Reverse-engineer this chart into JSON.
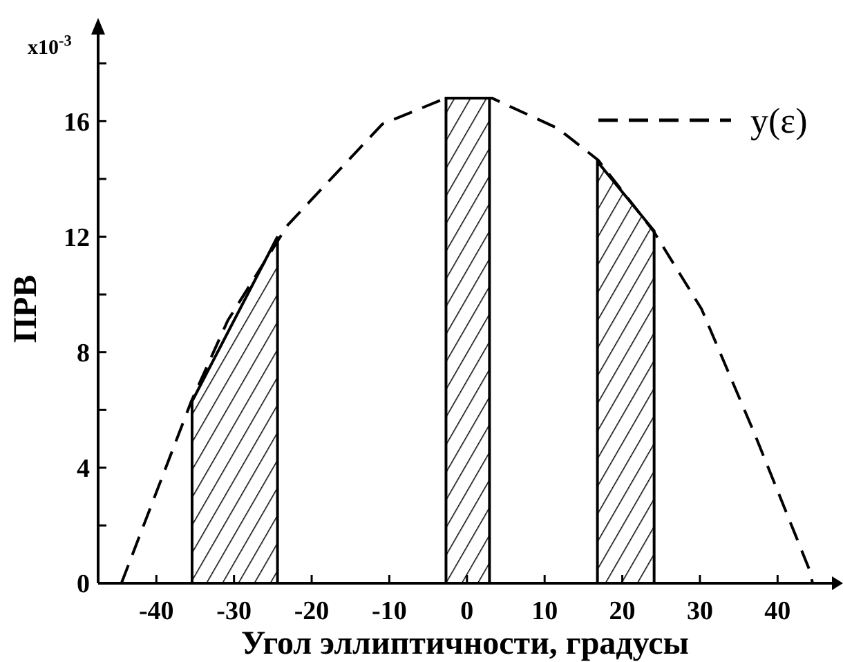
{
  "chart_data": {
    "type": "line",
    "xlabel": "Угол эллиптичности, градусы",
    "ylabel": "ПРВ",
    "annotations": [
      "x10$^{-3}$"
    ],
    "xlim": [
      -47.5,
      47
    ],
    "ylim": [
      0,
      19
    ],
    "xticks": [
      -40,
      -30,
      -20,
      -10,
      0,
      10,
      20,
      30,
      40
    ],
    "yticks": [
      0,
      {
        "value": 2,
        "label": null
      },
      4,
      {
        "value": 6,
        "label": null
      },
      8,
      {
        "value": 10,
        "label": null
      },
      12,
      {
        "value": 14,
        "label": null
      },
      16,
      {
        "value": 18,
        "label": null
      }
    ],
    "grid": false,
    "legend": "top right",
    "marker": "none",
    "series": [
      {
        "name": "y(ε)",
        "line_style": "dashed",
        "color": "#000000",
        "x": [
          -44.5,
          -35.5,
          -30.8,
          -24.5,
          -23.1,
          -10.9,
          -2.7,
          3.2,
          11.7,
          16.9,
          24,
          30.2,
          37,
          44.2,
          44.5
        ],
        "values": [
          0,
          6.3,
          9.1,
          11.8,
          12.4,
          15.9,
          16.8,
          16.8,
          15.75,
          14.65,
          12.2,
          9.5,
          5.2,
          0.4,
          0
        ]
      },
      {
        "type": "area",
        "line_style": "solid",
        "color": "#000000",
        "x": [
          -35.4,
          -24.4
        ],
        "values": [
          6.3,
          12.0
        ]
      },
      {
        "type": "area",
        "line_style": "solid",
        "color": "#000000",
        "x": [
          -2.7,
          2.9
        ],
        "values": [
          16.8,
          16.8
        ]
      },
      {
        "type": "area",
        "line_style": "solid",
        "color": "#000000",
        "x": [
          16.8,
          24.1
        ],
        "values": [
          14.6,
          12.2
        ]
      }
    ]
  }
}
